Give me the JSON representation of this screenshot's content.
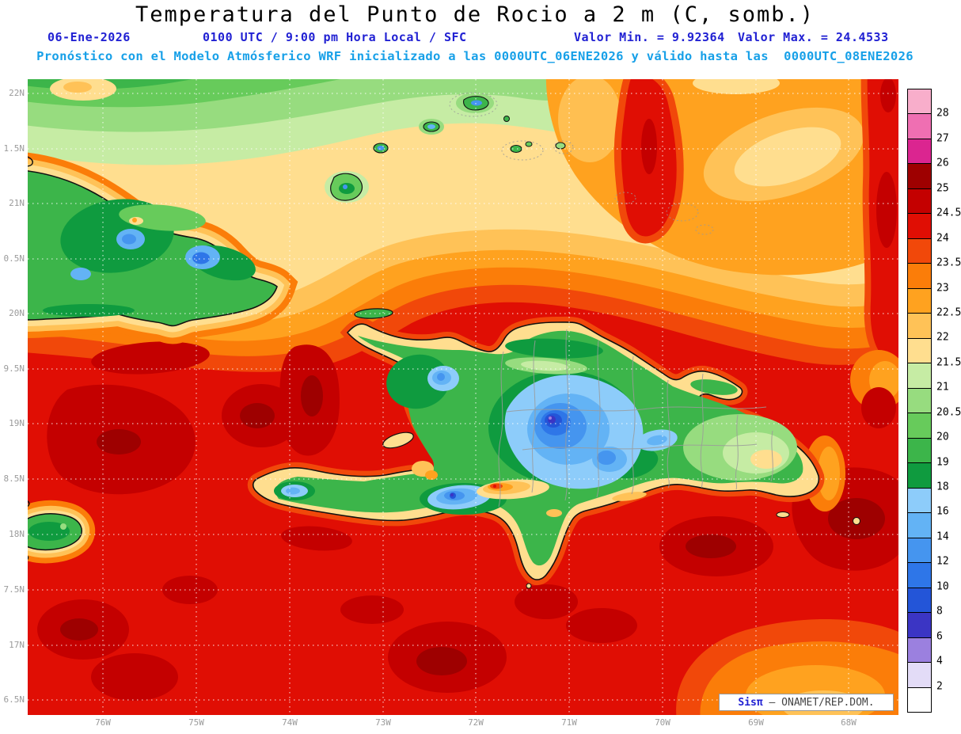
{
  "header": {
    "title": "Temperatura del Punto de Rocio a 2 m (C, somb.)",
    "init": {
      "date": "06-Ene-2026",
      "time": "0100 UTC / 9:00 pm Hora Local / SFC",
      "min": "Valor Min. = 9.92364",
      "max": "Valor Max. = 24.4533"
    },
    "model_line": "Pronóstico con el Modelo Atmósferico WRF inicializado a las 0000UTC_06ENE2026 y válido hasta las  0000UTC_08ENE2026"
  },
  "axes": {
    "lat_labels": [
      "22N",
      "1.5N",
      "21N",
      "0.5N",
      "20N",
      "9.5N",
      "19N",
      "8.5N",
      "18N",
      "7.5N",
      "17N",
      "6.5N"
    ],
    "lon_labels": [
      "76W",
      "75W",
      "74W",
      "73W",
      "72W",
      "71W",
      "70W",
      "69W",
      "68W"
    ]
  },
  "colorbar": {
    "labels": [
      "28",
      "27",
      "26",
      "25",
      "24.5",
      "24",
      "23.5",
      "23",
      "22.5",
      "22",
      "21.5",
      "21",
      "20.5",
      "20",
      "19",
      "18",
      "16",
      "14",
      "12",
      "10",
      "8",
      "6",
      "4",
      "2"
    ],
    "colors_top_to_bottom": [
      "#F8AECB",
      "#EF6FB2",
      "#DB2590",
      "#9E0000",
      "#C40000",
      "#E00E04",
      "#F1480A",
      "#FB7D09",
      "#FFA21F",
      "#FFC257",
      "#FFDE8F",
      "#C6ECA4",
      "#97DC7F",
      "#67CB5B",
      "#3CB54A",
      "#0F9B3F",
      "#8DCCFA",
      "#63B3F5",
      "#4595EF",
      "#2E76E8",
      "#2355D8",
      "#3B35C4",
      "#9B80DF",
      "#E3DCF7",
      "#FFFFFF"
    ]
  },
  "watermark": {
    "brand": "Sisπ",
    "text": " — ONAMET/REP.DOM."
  },
  "chart_data": {
    "type": "filled_contour_map",
    "variable": "Temperatura del Punto de Rocio a 2 m (C, somb.)",
    "value_min": 9.92364,
    "value_max": 24.4533,
    "contour_levels": [
      2,
      4,
      6,
      8,
      10,
      12,
      14,
      16,
      18,
      19,
      20,
      20.5,
      21,
      21.5,
      22,
      22.5,
      23,
      23.5,
      24,
      24.5,
      25,
      26,
      27,
      28
    ]
  }
}
